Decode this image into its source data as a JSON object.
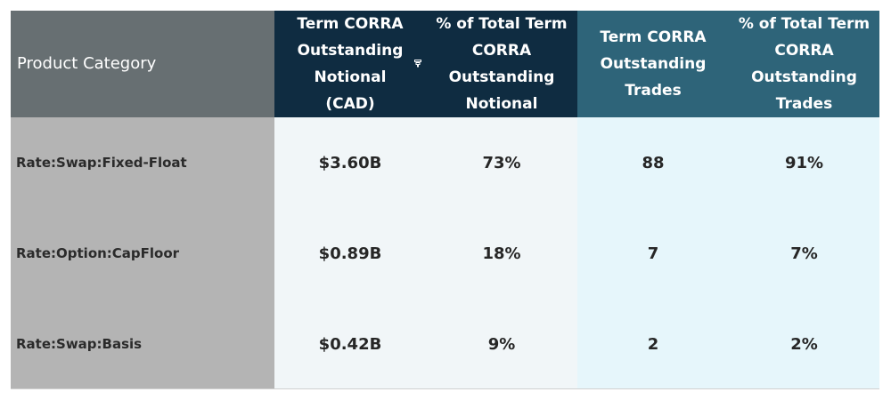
{
  "chart_data": {
    "type": "table",
    "columns": [
      "Product Category",
      "Term CORRA Outstanding Notional (CAD)",
      "% of Total Term CORRA Outstanding Notional",
      "Term CORRA Outstanding Trades",
      "% of Total Term CORRA Outstanding Trades"
    ],
    "header_lines": [
      [
        "Product Category"
      ],
      [
        "Term CORRA",
        "Outstanding",
        "Notional",
        "(CAD)"
      ],
      [
        "% of Total Term",
        "CORRA",
        "Outstanding",
        "Notional"
      ],
      [
        "Term CORRA",
        "Outstanding",
        "Trades"
      ],
      [
        "% of Total Term",
        "CORRA",
        "Outstanding",
        "Trades"
      ]
    ],
    "rows": [
      [
        "Rate:Swap:Fixed-Float",
        "$3.60B",
        "73%",
        "88",
        "91%"
      ],
      [
        "Rate:Option:CapFloor",
        "$0.89B",
        "18%",
        "7",
        "7%"
      ],
      [
        "Rate:Swap:Basis",
        "$0.42B",
        "9%",
        "2",
        "2%"
      ]
    ]
  },
  "colors": {
    "category_header": "#676f72",
    "notional_header": "#0f2c41",
    "trades_header": "#2e6479",
    "category_column": "#b4b4b4",
    "notional_columns": "#f1f6f8",
    "trades_columns": "#e6f6fb"
  },
  "icons": {
    "header_filter": "filter-icon"
  }
}
